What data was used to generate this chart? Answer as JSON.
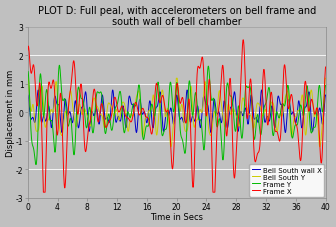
{
  "title": "PLOT D: Full peal, with accelerometers on bell frame and\nsouth wall of bell chamber",
  "xlabel": "Time in Secs",
  "ylabel": "Displacement in mm",
  "xlim": [
    0,
    40
  ],
  "ylim": [
    -3,
    3
  ],
  "yticks": [
    -3,
    -2,
    -1,
    0,
    1,
    2,
    3
  ],
  "xticks": [
    0,
    4,
    8,
    12,
    16,
    20,
    24,
    28,
    32,
    36,
    40
  ],
  "xtick_labels": [
    "0",
    "4",
    "8",
    "12",
    "16",
    "20",
    "24",
    "28",
    "32",
    "36",
    "40"
  ],
  "legend": [
    "Frame X",
    "Frame Y",
    "Bell South wall X",
    "Bell South Y"
  ],
  "colors": [
    "#ff0000",
    "#00bb00",
    "#0000cc",
    "#cccc00"
  ],
  "background_color": "#c0c0c0",
  "grid_color": "#ffffff",
  "title_fontsize": 7.0,
  "label_fontsize": 6.0,
  "tick_fontsize": 5.5,
  "legend_fontsize": 5.0,
  "linewidth": 0.7
}
